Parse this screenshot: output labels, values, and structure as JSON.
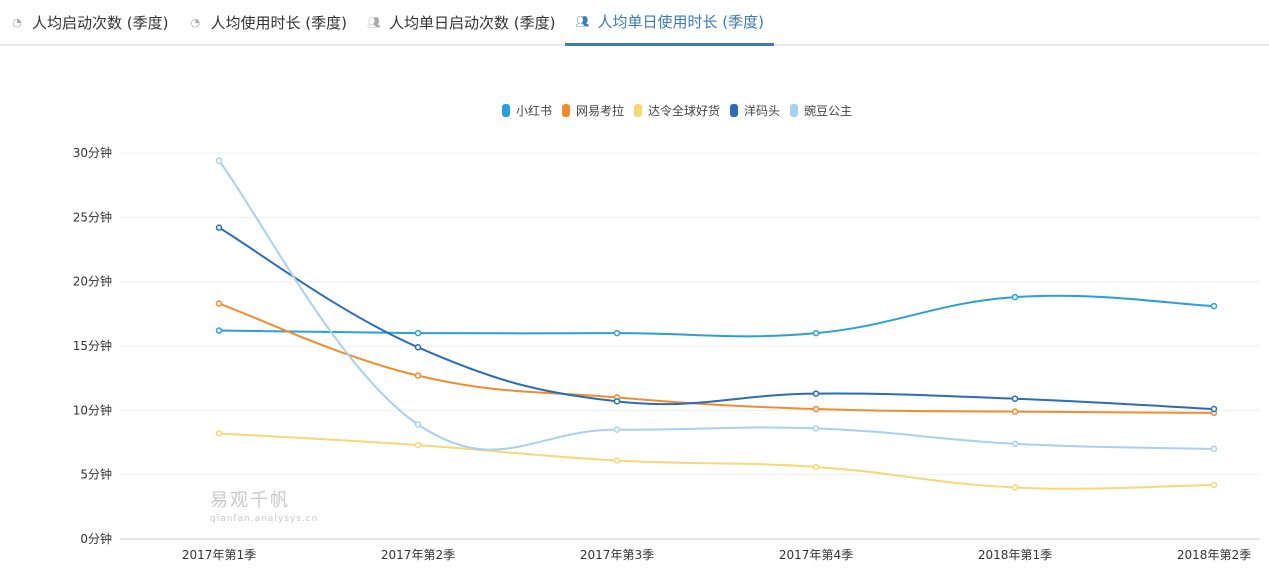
{
  "tabs": [
    {
      "label": "人均启动次数 (季度)",
      "icon": "chart-search-icon",
      "active": false
    },
    {
      "label": "人均使用时长 (季度)",
      "icon": "chart-search-icon",
      "active": false
    },
    {
      "label": "人均单日启动次数 (季度)",
      "icon": "users-icon",
      "active": false
    },
    {
      "label": "人均单日使用时长 (季度)",
      "icon": "users-icon",
      "active": true
    }
  ],
  "watermark": {
    "name": "易观千帆",
    "url": "qianfan.analysys.cn"
  },
  "chart_data": {
    "type": "line",
    "title": "",
    "xlabel": "",
    "ylabel": "",
    "categories": [
      "2017年第1季",
      "2017年第2季",
      "2017年第3季",
      "2017年第4季",
      "2018年第1季",
      "2018年第2季"
    ],
    "yticks": [
      "0分钟",
      "5分钟",
      "10分钟",
      "15分钟",
      "20分钟",
      "25分钟",
      "30分钟"
    ],
    "ylim": [
      0,
      30
    ],
    "grid": true,
    "legend_position": "top-center",
    "series": [
      {
        "name": "小红书",
        "color": "#2a9fd8",
        "values": [
          16.2,
          16.0,
          16.0,
          16.0,
          18.8,
          18.1
        ]
      },
      {
        "name": "网易考拉",
        "color": "#f08c2e",
        "values": [
          18.3,
          12.7,
          11.0,
          10.1,
          9.9,
          9.8
        ]
      },
      {
        "name": "达令全球好货",
        "color": "#f8d775",
        "values": [
          8.2,
          7.3,
          6.1,
          5.6,
          4.0,
          4.2
        ]
      },
      {
        "name": "洋码头",
        "color": "#2b6cb5",
        "values": [
          24.2,
          14.9,
          10.7,
          11.3,
          10.9,
          10.1
        ]
      },
      {
        "name": "豌豆公主",
        "color": "#a7d1ef",
        "values": [
          29.4,
          8.9,
          8.5,
          8.6,
          7.4,
          7.0
        ]
      }
    ]
  }
}
